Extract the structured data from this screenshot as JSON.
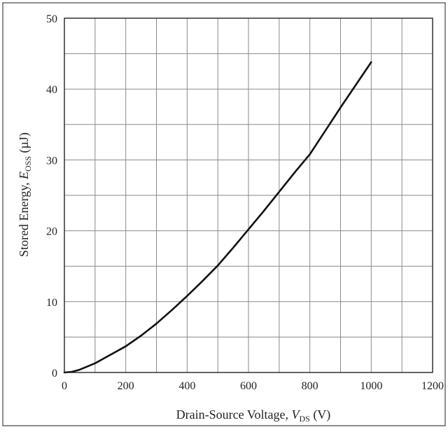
{
  "chart_data": {
    "type": "line",
    "title": "",
    "xlabel": {
      "prefix": "Drain-Source Voltage, ",
      "symbol": "V",
      "subscript": "DS",
      "suffix": " (V)"
    },
    "ylabel": {
      "prefix": "Stored Energy, ",
      "symbol": "E",
      "subscript": "OSS",
      "suffix": " (µJ)"
    },
    "xlim": [
      0,
      1200
    ],
    "ylim": [
      0,
      50
    ],
    "x_ticks": [
      0,
      200,
      400,
      600,
      800,
      1000,
      1200
    ],
    "y_ticks": [
      0,
      10,
      20,
      30,
      40,
      50
    ],
    "x_tick_labels": [
      "0",
      "200",
      "400",
      "600",
      "800",
      "1000",
      "1200"
    ],
    "y_tick_labels": [
      "0",
      "10",
      "20",
      "30",
      "40",
      "50"
    ],
    "x_grid_step": 100,
    "y_grid_step": 5,
    "grid": true,
    "legend": "none",
    "series": [
      {
        "x": [
          0,
          25,
          50,
          100,
          150,
          200,
          250,
          300,
          350,
          400,
          450,
          500,
          550,
          600,
          650,
          700,
          750,
          800,
          850,
          900,
          950,
          1000
        ],
        "y": [
          0,
          0.1,
          0.4,
          1.3,
          2.5,
          3.7,
          5.2,
          6.9,
          8.8,
          10.8,
          12.9,
          15.1,
          17.6,
          20.2,
          22.8,
          25.5,
          28.2,
          30.8,
          34.1,
          37.4,
          40.6,
          43.8
        ],
        "color": "#111111"
      }
    ]
  }
}
